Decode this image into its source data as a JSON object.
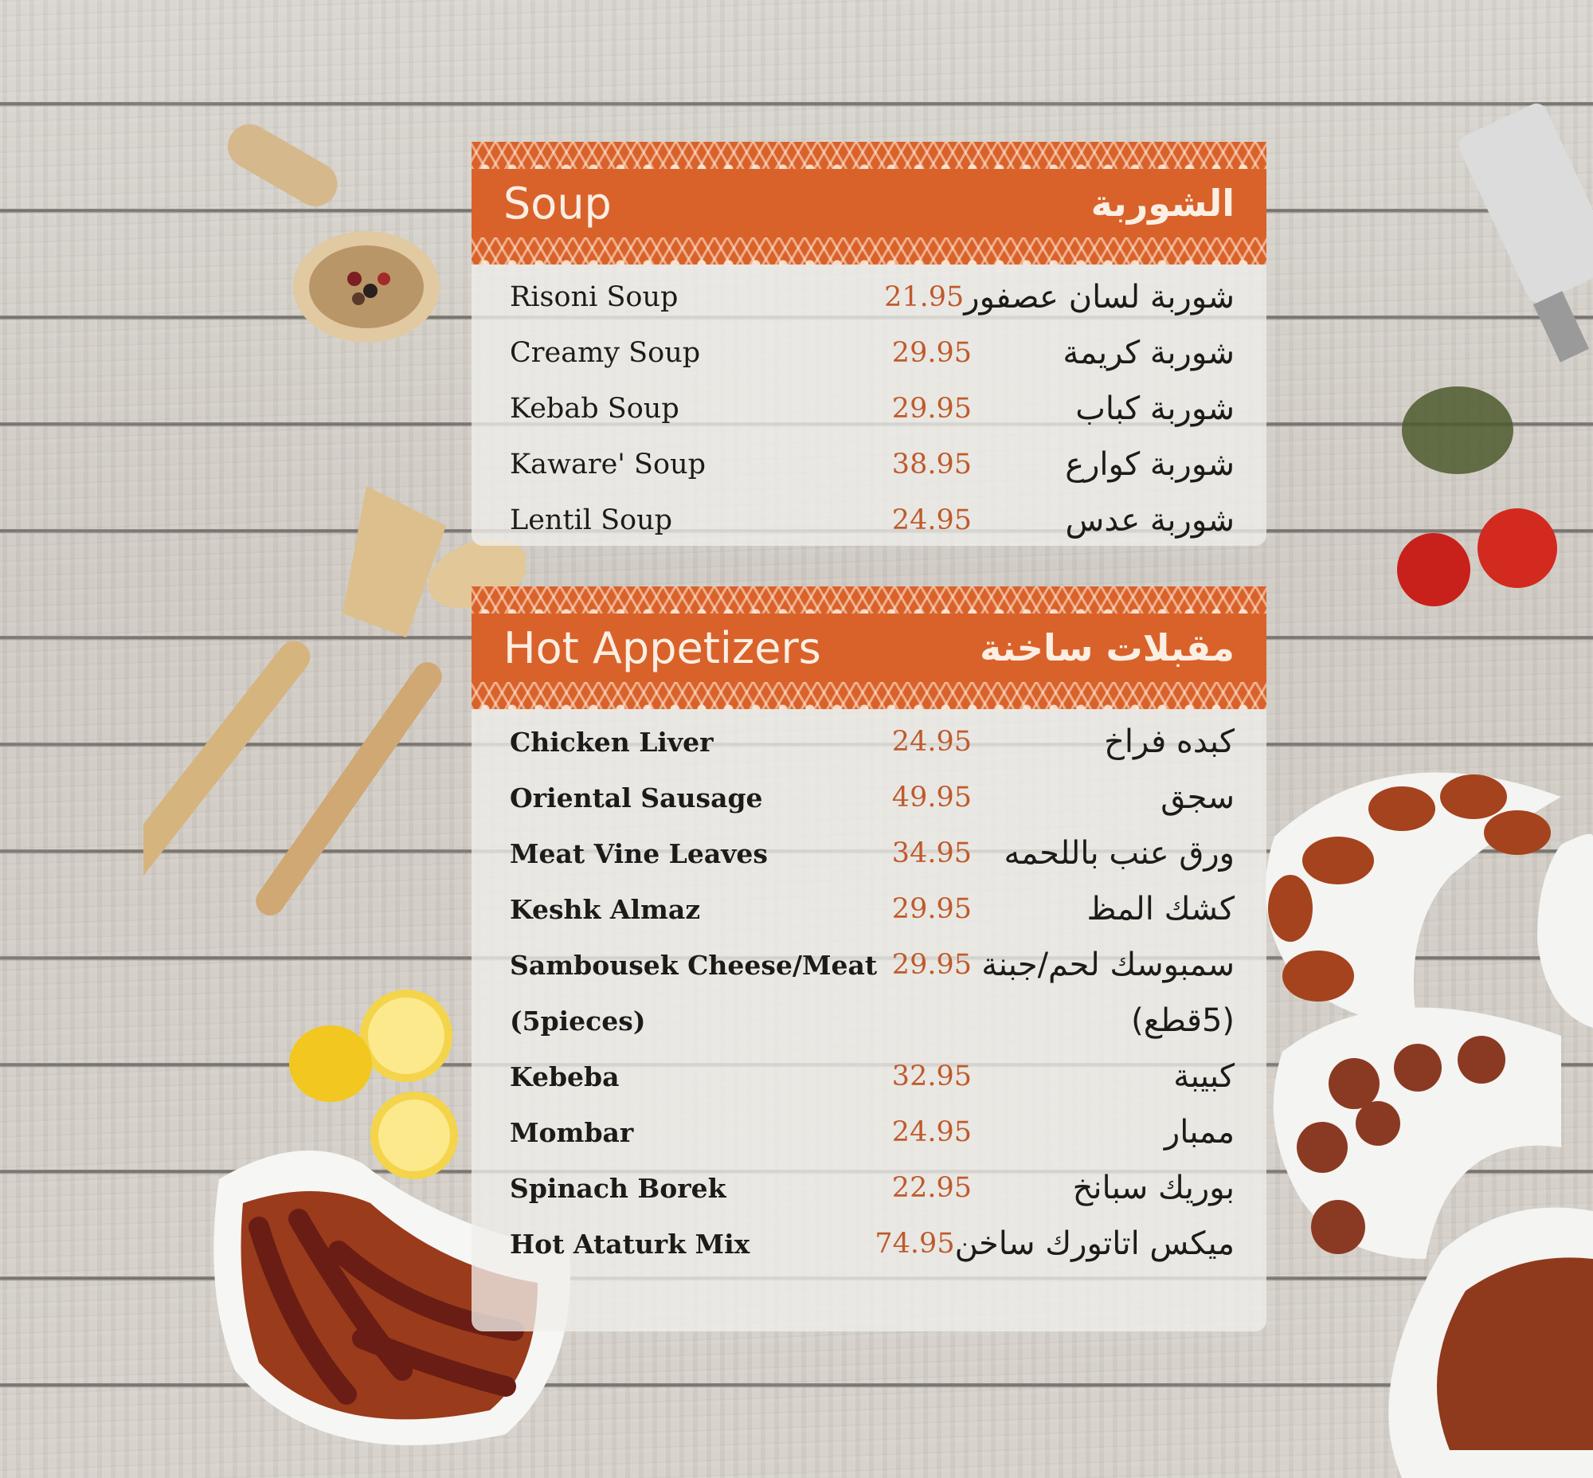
{
  "colors": {
    "accent": "#d9622b",
    "price": "#bf5a2c",
    "text": "#1d1b1a"
  },
  "sections": [
    {
      "title_en": "Soup",
      "title_ar": "الشوربة",
      "items": [
        {
          "en": "Risoni Soup",
          "price": "21.95",
          "ar": "شوربة لسان عصفور"
        },
        {
          "en": "Creamy Soup",
          "price": "29.95",
          "ar": "شوربة كريمة"
        },
        {
          "en": "Kebab Soup",
          "price": "29.95",
          "ar": "شوربة كباب"
        },
        {
          "en": "Kaware' Soup",
          "price": "38.95",
          "ar": "شوربة كوارع"
        },
        {
          "en": "Lentil Soup",
          "price": "24.95",
          "ar": "شوربة عدس"
        }
      ]
    },
    {
      "title_en": "Hot Appetizers",
      "title_ar": "مقبلات ساخنة",
      "items": [
        {
          "en": "Chicken Liver",
          "price": "24.95",
          "ar": "كبده فراخ"
        },
        {
          "en": "Oriental Sausage",
          "price": "49.95",
          "ar": "سجق"
        },
        {
          "en": "Meat Vine Leaves",
          "price": "34.95",
          "ar": "ورق عنب باللحمه"
        },
        {
          "en": "Keshk Almaz",
          "price": "29.95",
          "ar": "كشك المظ"
        },
        {
          "en": "Sambousek Cheese/Meat",
          "price": "29.95",
          "ar": "سمبوسك لحم/جبنة"
        },
        {
          "en": "(5pieces)",
          "price": "",
          "ar": "(5قطع)"
        },
        {
          "en": "Kebeba",
          "price": "32.95",
          "ar": "كبيبة"
        },
        {
          "en": "Mombar",
          "price": "24.95",
          "ar": "ممبار"
        },
        {
          "en": "Spinach Borek",
          "price": "22.95",
          "ar": "بوريك سبانخ"
        },
        {
          "en": "Hot Ataturk Mix",
          "price": "74.95",
          "ar": "ميكس اتاتورك ساخن"
        }
      ]
    }
  ]
}
